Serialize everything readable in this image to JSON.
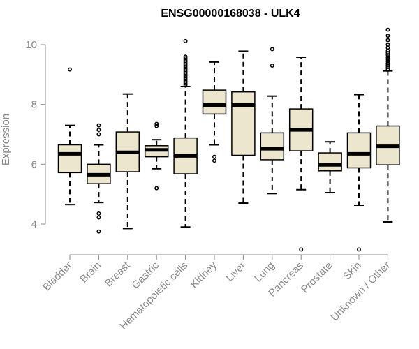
{
  "chart_data": {
    "type": "boxplot",
    "title": "ENSG00000168038 - ULK4",
    "xlabel": "",
    "ylabel": "Expression",
    "ylim": [
      3.0,
      10.7
    ],
    "yticks": [
      4,
      6,
      8,
      10
    ],
    "colors": {
      "box_fill": "#ede6cf",
      "stroke": "#000000",
      "axis": "#8a8a8a"
    },
    "categories": [
      "Bladder",
      "Brain",
      "Breast",
      "Gastric",
      "Hematopoietic cells",
      "Kidney",
      "Liver",
      "Lung",
      "Pancreas",
      "Prostate",
      "Skin",
      "Unknown / Other"
    ],
    "boxes": [
      {
        "name": "Bladder",
        "whisker_low": 4.65,
        "q1": 5.72,
        "median": 6.35,
        "q3": 6.65,
        "whisker_high": 7.3,
        "outliers": [
          9.17
        ]
      },
      {
        "name": "Brain",
        "whisker_low": 4.72,
        "q1": 5.35,
        "median": 5.65,
        "q3": 6.0,
        "whisker_high": 6.65,
        "outliers": [
          7.3,
          7.15,
          7.0,
          4.35,
          4.22,
          3.75
        ]
      },
      {
        "name": "Breast",
        "whisker_low": 3.85,
        "q1": 5.75,
        "median": 6.4,
        "q3": 7.08,
        "whisker_high": 8.35,
        "outliers": []
      },
      {
        "name": "Gastric",
        "whisker_low": 5.85,
        "q1": 6.25,
        "median": 6.48,
        "q3": 6.62,
        "whisker_high": 6.82,
        "outliers": [
          7.35,
          7.28,
          5.2
        ]
      },
      {
        "name": "Hematopoietic cells",
        "whisker_low": 3.9,
        "q1": 5.68,
        "median": 6.28,
        "q3": 6.88,
        "whisker_high": 8.6,
        "outliers": [
          10.12,
          9.6,
          9.55,
          9.5,
          9.45,
          9.4,
          9.35,
          9.3,
          9.25,
          9.2,
          9.15,
          9.1,
          9.05,
          9.0,
          8.95,
          8.9,
          8.85,
          8.8,
          8.75,
          8.7,
          8.65
        ]
      },
      {
        "name": "Kidney",
        "whisker_low": 6.65,
        "q1": 7.68,
        "median": 7.98,
        "q3": 8.48,
        "whisker_high": 9.42,
        "outliers": [
          6.25,
          6.12
        ]
      },
      {
        "name": "Liver",
        "whisker_low": 4.7,
        "q1": 6.3,
        "median": 7.98,
        "q3": 8.42,
        "whisker_high": 9.78,
        "outliers": []
      },
      {
        "name": "Lung",
        "whisker_low": 5.02,
        "q1": 6.15,
        "median": 6.52,
        "q3": 7.05,
        "whisker_high": 8.28,
        "outliers": [
          9.85,
          9.3
        ]
      },
      {
        "name": "Pancreas",
        "whisker_low": 5.15,
        "q1": 6.45,
        "median": 7.15,
        "q3": 7.85,
        "whisker_high": 9.58,
        "outliers": [
          3.15
        ]
      },
      {
        "name": "Prostate",
        "whisker_low": 5.05,
        "q1": 5.78,
        "median": 5.98,
        "q3": 6.38,
        "whisker_high": 6.75,
        "outliers": []
      },
      {
        "name": "Skin",
        "whisker_low": 4.63,
        "q1": 5.88,
        "median": 6.35,
        "q3": 7.05,
        "whisker_high": 8.33,
        "outliers": [
          3.15
        ]
      },
      {
        "name": "Unknown / Other",
        "whisker_low": 4.07,
        "q1": 5.98,
        "median": 6.6,
        "q3": 7.28,
        "whisker_high": 9.12,
        "outliers": [
          10.5,
          10.3,
          10.15,
          10.0,
          9.9,
          9.8,
          9.72,
          9.65,
          9.58,
          9.52,
          9.45,
          9.38,
          9.32,
          9.25,
          9.18
        ]
      }
    ]
  }
}
